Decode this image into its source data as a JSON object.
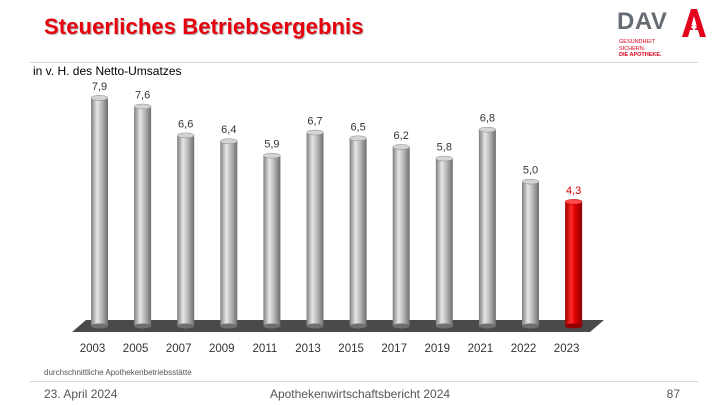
{
  "slide": {
    "title": "Steuerliches Betriebsergebnis",
    "subtitle": "in v. H. des Netto-Umsatzes",
    "note": "durchschnittliche Apothekenbetriebsstätte"
  },
  "logo": {
    "name": "DAV",
    "tagline_1": "GESUNDHEIT",
    "tagline_2": "SICHERN.",
    "tagline_3": "DIE APOTHEKE.",
    "icon": "pharmacy-a-icon"
  },
  "footer": {
    "date": "23. April 2024",
    "center": "Apothekenwirtschaftsbericht 2024",
    "page": "87"
  },
  "colors": {
    "title": "#e8000d",
    "bar": "#b4b4b4",
    "highlight_bar": "#e00000",
    "highlight_label": "#e00000"
  },
  "chart_data": {
    "type": "bar",
    "categories": [
      "2003",
      "2005",
      "2007",
      "2009",
      "2011",
      "2013",
      "2015",
      "2017",
      "2019",
      "2021",
      "2022",
      "2023"
    ],
    "values": [
      7.9,
      7.6,
      6.6,
      6.4,
      5.9,
      6.7,
      6.5,
      6.2,
      5.8,
      6.8,
      5.0,
      4.3
    ],
    "data_labels": [
      "7,9",
      "7,6",
      "6,6",
      "6,4",
      "5,9",
      "6,7",
      "6,5",
      "6,2",
      "5,8",
      "6,8",
      "5,0",
      "4,3"
    ],
    "highlight_category": "2023",
    "title": "",
    "xlabel": "",
    "ylabel": "in v. H. des Netto-Umsatzes",
    "ylim": [
      0,
      8
    ],
    "grid": false,
    "legend": "none",
    "style": "3d-cylinder"
  }
}
